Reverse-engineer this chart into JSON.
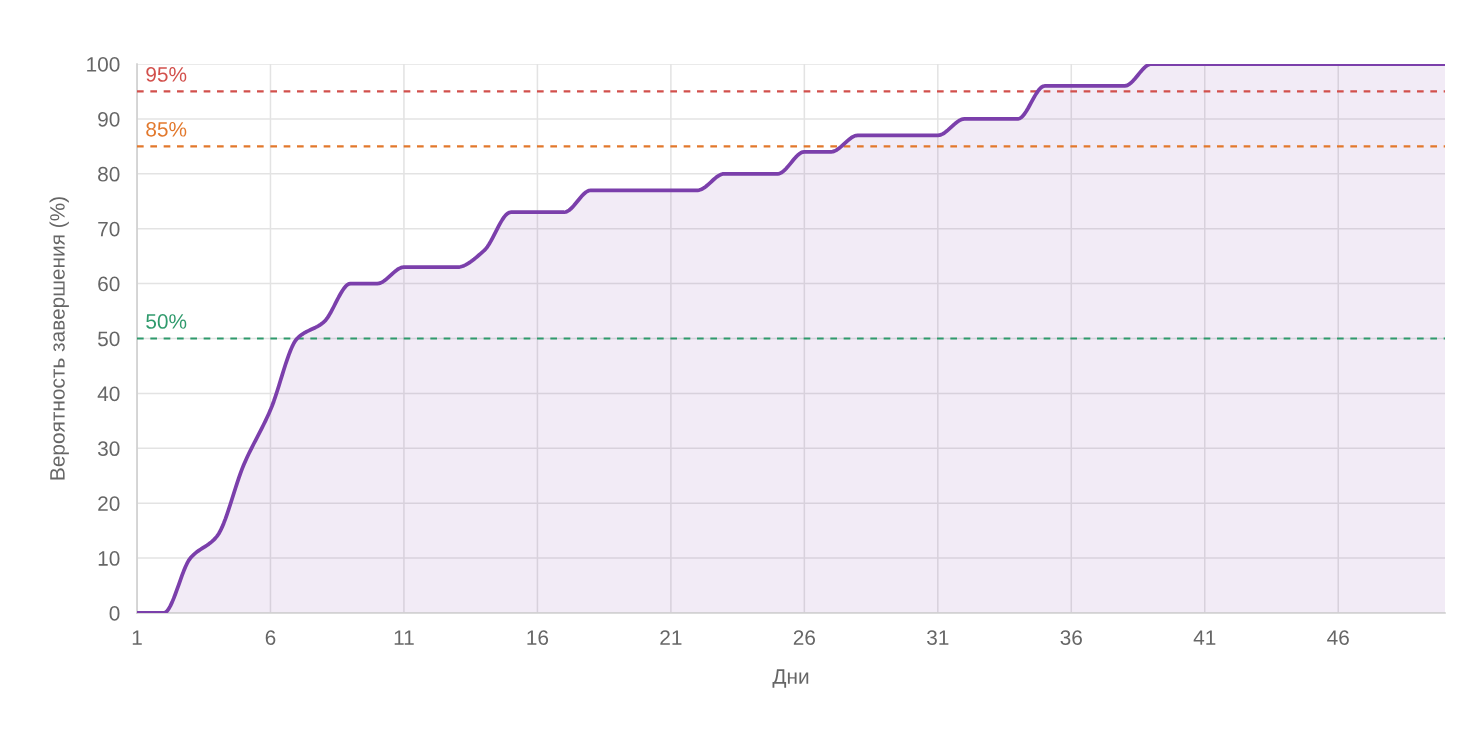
{
  "chart_data": {
    "type": "area",
    "xlabel": "Дни",
    "ylabel": "Вероятность завершения (%)",
    "x": [
      1,
      2,
      3,
      4,
      5,
      6,
      7,
      8,
      9,
      10,
      11,
      12,
      13,
      14,
      15,
      16,
      17,
      18,
      19,
      20,
      21,
      22,
      23,
      24,
      25,
      26,
      27,
      28,
      29,
      30,
      31,
      32,
      33,
      34,
      35,
      36,
      37,
      38,
      39,
      40,
      41,
      42,
      43,
      44,
      45,
      46,
      47,
      48,
      49,
      50
    ],
    "series": [
      {
        "color": "#7b3fab",
        "values": [
          0,
          0,
          10,
          14,
          27,
          37,
          50,
          53,
          60,
          60,
          63,
          63,
          63,
          66,
          73,
          73,
          73,
          77,
          77,
          77,
          77,
          77,
          80,
          80,
          80,
          84,
          84,
          87,
          87,
          87,
          87,
          90,
          90,
          90,
          96,
          96,
          96,
          96,
          100,
          100,
          100,
          100,
          100,
          100,
          100,
          100,
          100,
          100,
          100,
          100
        ]
      }
    ],
    "xlim": [
      1,
      50
    ],
    "xticks": [
      1,
      6,
      11,
      16,
      21,
      26,
      31,
      36,
      41,
      46
    ],
    "ylim": [
      0,
      100
    ],
    "yticks": [
      0,
      10,
      20,
      30,
      40,
      50,
      60,
      70,
      80,
      90,
      100
    ],
    "ref_lines": [
      {
        "axis": "y",
        "value": 95,
        "label": "95%",
        "color": "#d2504c",
        "line_style": "dashed"
      },
      {
        "axis": "y",
        "value": 85,
        "label": "85%",
        "color": "#e2782c",
        "line_style": "dashed"
      },
      {
        "axis": "y",
        "value": 50,
        "label": "50%",
        "color": "#2f9a6c",
        "line_style": "dashed"
      }
    ],
    "grid": true,
    "line_style": "solid"
  }
}
